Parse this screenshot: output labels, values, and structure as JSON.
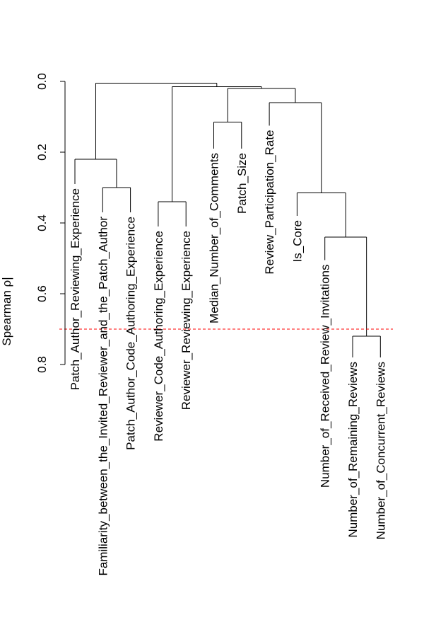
{
  "chart_data": {
    "type": "dendrogram",
    "ylabel": "Spearman ρ|",
    "ylim": [
      0,
      0.8
    ],
    "y_ticks": [
      {
        "value": 0.0,
        "label": "0.0"
      },
      {
        "value": 0.2,
        "label": "0.2"
      },
      {
        "value": 0.4,
        "label": "0.4"
      },
      {
        "value": 0.6,
        "label": "0.6"
      },
      {
        "value": 0.8,
        "label": "0.8"
      }
    ],
    "threshold": 0.7,
    "threshold_color": "#ff0000",
    "leaves": [
      {
        "label": "Patch_Author_Reviewing_Experience",
        "height": 0.29
      },
      {
        "label": "Familiarity_between_the_Invited_Reviewer_and_the_Patch_Author",
        "height": 0.37
      },
      {
        "label": "Patch_Author_Code_Authoring_Experience",
        "height": 0.37
      },
      {
        "label": "Reviewer_Code_Authoring_Experience",
        "height": 0.41
      },
      {
        "label": "Reviewer_Reviewing_Experience",
        "height": 0.41
      },
      {
        "label": "Median_Number_of_Comments",
        "height": 0.19
      },
      {
        "label": "Patch_Size",
        "height": 0.19
      },
      {
        "label": "Review_Participation_Rate",
        "height": 0.125
      },
      {
        "label": "Is_Core",
        "height": 0.38
      },
      {
        "label": "Number_of_Received_Review_Invitations",
        "height": 0.505
      },
      {
        "label": "Number_of_Remaining_Reviews",
        "height": 0.78
      },
      {
        "label": "Number_of_Concurrent_Reviews",
        "height": 0.78
      }
    ],
    "merges": [
      {
        "a": 11,
        "b": 12,
        "height": 0.72
      },
      {
        "a": 10,
        "b": -1,
        "height": 0.44
      },
      {
        "a": 9,
        "b": -2,
        "height": 0.315
      },
      {
        "a": 8,
        "b": -3,
        "height": 0.06
      },
      {
        "a": 6,
        "b": 7,
        "height": 0.115
      },
      {
        "a": -5,
        "b": -4,
        "height": 0.02
      },
      {
        "a": 4,
        "b": 5,
        "height": 0.34
      },
      {
        "a": -7,
        "b": -6,
        "height": 0.015
      },
      {
        "a": 2,
        "b": 3,
        "height": 0.3
      },
      {
        "a": 1,
        "b": -9,
        "height": 0.22
      },
      {
        "a": -10,
        "b": -8,
        "height": 0.005
      }
    ]
  }
}
